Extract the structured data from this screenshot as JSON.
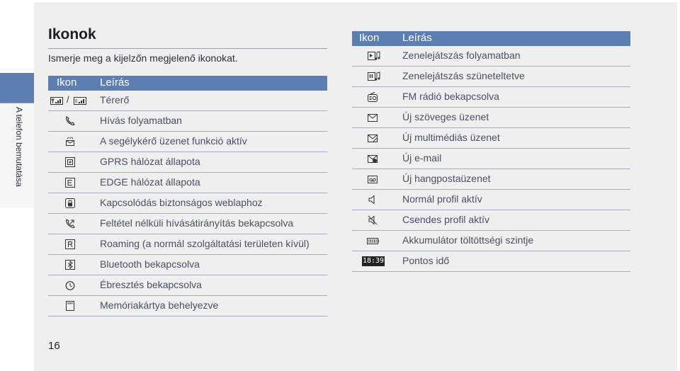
{
  "side_tab": {
    "label": "A telefon bemutatása"
  },
  "heading": "Ikonok",
  "intro": "Ismerje meg a kijelzőn megjelenő ikonokat.",
  "table_header": {
    "icon_col": "Ikon",
    "desc_col": "Leírás"
  },
  "left_rows": [
    {
      "icon": "signal-strength-icon",
      "separator": "/",
      "desc": "Térerő"
    },
    {
      "icon": "call-in-progress-icon",
      "desc": "Hívás folyamatban"
    },
    {
      "icon": "sos-message-icon",
      "desc": "A segélykérő üzenet funkció aktív"
    },
    {
      "icon": "gprs-icon",
      "desc": "GPRS hálózat állapota"
    },
    {
      "icon": "edge-icon",
      "desc": "EDGE hálózat állapota"
    },
    {
      "icon": "secure-web-icon",
      "desc": "Kapcsolódás biztonságos weblaphoz"
    },
    {
      "icon": "call-divert-icon",
      "desc": "Feltétel nélküli hívásátirányítás bekapcsolva"
    },
    {
      "icon": "roaming-icon",
      "desc": "Roaming (a normál szolgáltatási területen kívül)"
    },
    {
      "icon": "bluetooth-icon",
      "desc": "Bluetooth bekapcsolva"
    },
    {
      "icon": "alarm-clock-icon",
      "desc": "Ébresztés bekapcsolva"
    },
    {
      "icon": "memory-card-icon",
      "desc": "Memóriakártya behelyezve"
    }
  ],
  "right_rows": [
    {
      "icon": "music-playing-icon",
      "desc": "Zenelejátszás folyamatban"
    },
    {
      "icon": "music-paused-icon",
      "desc": "Zenelejátszás szüneteltetve"
    },
    {
      "icon": "fm-radio-icon",
      "desc": "FM rádió bekapcsolva"
    },
    {
      "icon": "new-text-message-icon",
      "desc": "Új szöveges üzenet"
    },
    {
      "icon": "new-multimedia-message-icon",
      "desc": "Új multimédiás üzenet"
    },
    {
      "icon": "new-email-icon",
      "desc": "Új e-mail"
    },
    {
      "icon": "new-voicemail-icon",
      "desc": "Új hangpostaüzenet"
    },
    {
      "icon": "normal-profile-icon",
      "desc": "Normál profil aktív"
    },
    {
      "icon": "silent-profile-icon",
      "desc": "Csendes profil aktív"
    },
    {
      "icon": "battery-level-icon",
      "desc": "Akkumulátor töltöttségi szintje"
    },
    {
      "icon": "current-time-icon",
      "time": "18:39",
      "desc": "Pontos idő"
    }
  ],
  "page_number": "16"
}
